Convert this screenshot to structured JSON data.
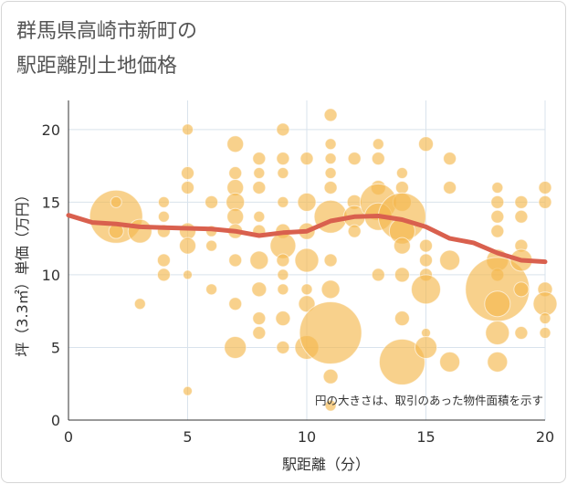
{
  "title_line1": "群馬県高崎市新町の",
  "title_line2": "駅距離別土地価格",
  "chart_data": {
    "type": "scatter",
    "xlabel": "駅距離（分）",
    "ylabel": "坪（3.3㎡）単価（万円）",
    "xlim": [
      0,
      20
    ],
    "ylim": [
      0,
      22
    ],
    "xticks": [
      0,
      5,
      10,
      15,
      20
    ],
    "yticks": [
      0,
      5,
      10,
      15,
      20
    ],
    "grid": true,
    "note": "円の大きさは、取引のあった物件面積を示す",
    "colors": {
      "bubble": "#f4b84f",
      "trend": "#d9604e"
    },
    "trend_line": {
      "x": [
        0,
        1,
        2,
        3,
        4,
        5,
        6,
        7,
        8,
        9,
        10,
        11,
        12,
        13,
        14,
        15,
        16,
        17,
        18,
        19,
        20
      ],
      "y": [
        14.1,
        13.6,
        13.5,
        13.3,
        13.25,
        13.2,
        13.15,
        13.0,
        12.7,
        12.9,
        13.0,
        13.7,
        14.0,
        14.05,
        13.8,
        13.3,
        12.5,
        12.2,
        11.5,
        11.0,
        10.9
      ]
    },
    "points": [
      {
        "x": 2,
        "y": 14,
        "s": 29
      },
      {
        "x": 2,
        "y": 15,
        "s": 6
      },
      {
        "x": 2,
        "y": 13,
        "s": 8
      },
      {
        "x": 3,
        "y": 13,
        "s": 13
      },
      {
        "x": 3,
        "y": 8,
        "s": 6
      },
      {
        "x": 4,
        "y": 15,
        "s": 6
      },
      {
        "x": 4,
        "y": 14,
        "s": 6
      },
      {
        "x": 4,
        "y": 13,
        "s": 7
      },
      {
        "x": 4,
        "y": 11,
        "s": 7
      },
      {
        "x": 4,
        "y": 10,
        "s": 7
      },
      {
        "x": 5,
        "y": 20,
        "s": 6
      },
      {
        "x": 5,
        "y": 17,
        "s": 7
      },
      {
        "x": 5,
        "y": 16,
        "s": 7
      },
      {
        "x": 5,
        "y": 13,
        "s": 9
      },
      {
        "x": 5,
        "y": 12,
        "s": 9
      },
      {
        "x": 5,
        "y": 10,
        "s": 5
      },
      {
        "x": 5,
        "y": 2,
        "s": 5
      },
      {
        "x": 6,
        "y": 15,
        "s": 7
      },
      {
        "x": 6,
        "y": 13,
        "s": 6
      },
      {
        "x": 6,
        "y": 12,
        "s": 6
      },
      {
        "x": 6,
        "y": 9,
        "s": 6
      },
      {
        "x": 7,
        "y": 19,
        "s": 9
      },
      {
        "x": 7,
        "y": 17,
        "s": 7
      },
      {
        "x": 7,
        "y": 16,
        "s": 9
      },
      {
        "x": 7,
        "y": 15,
        "s": 10
      },
      {
        "x": 7,
        "y": 14,
        "s": 9
      },
      {
        "x": 7,
        "y": 13,
        "s": 8
      },
      {
        "x": 7,
        "y": 11,
        "s": 7
      },
      {
        "x": 7,
        "y": 8,
        "s": 7
      },
      {
        "x": 7,
        "y": 5,
        "s": 12
      },
      {
        "x": 8,
        "y": 18,
        "s": 7
      },
      {
        "x": 8,
        "y": 17,
        "s": 6
      },
      {
        "x": 8,
        "y": 16,
        "s": 7
      },
      {
        "x": 8,
        "y": 14,
        "s": 6
      },
      {
        "x": 8,
        "y": 13,
        "s": 7
      },
      {
        "x": 8,
        "y": 11,
        "s": 10
      },
      {
        "x": 8,
        "y": 9,
        "s": 8
      },
      {
        "x": 8,
        "y": 7,
        "s": 7
      },
      {
        "x": 8,
        "y": 6,
        "s": 7
      },
      {
        "x": 9,
        "y": 20,
        "s": 7
      },
      {
        "x": 9,
        "y": 18,
        "s": 7
      },
      {
        "x": 9,
        "y": 17,
        "s": 6
      },
      {
        "x": 9,
        "y": 15,
        "s": 6
      },
      {
        "x": 9,
        "y": 13,
        "s": 8
      },
      {
        "x": 9,
        "y": 12,
        "s": 14
      },
      {
        "x": 9,
        "y": 11,
        "s": 7
      },
      {
        "x": 9,
        "y": 10,
        "s": 6
      },
      {
        "x": 9,
        "y": 9,
        "s": 6
      },
      {
        "x": 9,
        "y": 7,
        "s": 8
      },
      {
        "x": 9,
        "y": 5,
        "s": 7
      },
      {
        "x": 10,
        "y": 18,
        "s": 7
      },
      {
        "x": 10,
        "y": 15,
        "s": 10
      },
      {
        "x": 10,
        "y": 13,
        "s": 9
      },
      {
        "x": 10,
        "y": 11,
        "s": 13
      },
      {
        "x": 10,
        "y": 9,
        "s": 6
      },
      {
        "x": 10,
        "y": 8,
        "s": 9
      },
      {
        "x": 10,
        "y": 5,
        "s": 13
      },
      {
        "x": 11,
        "y": 21,
        "s": 7
      },
      {
        "x": 11,
        "y": 19,
        "s": 6
      },
      {
        "x": 11,
        "y": 18,
        "s": 6
      },
      {
        "x": 11,
        "y": 17,
        "s": 6
      },
      {
        "x": 11,
        "y": 16,
        "s": 7
      },
      {
        "x": 11,
        "y": 14,
        "s": 18
      },
      {
        "x": 11,
        "y": 11,
        "s": 7
      },
      {
        "x": 11,
        "y": 9,
        "s": 10
      },
      {
        "x": 11,
        "y": 6,
        "s": 34
      },
      {
        "x": 11,
        "y": 3,
        "s": 8
      },
      {
        "x": 11,
        "y": 1,
        "s": 6
      },
      {
        "x": 12,
        "y": 18,
        "s": 7
      },
      {
        "x": 12,
        "y": 15,
        "s": 8
      },
      {
        "x": 12,
        "y": 14,
        "s": 12
      },
      {
        "x": 12,
        "y": 13,
        "s": 7
      },
      {
        "x": 13,
        "y": 19,
        "s": 6
      },
      {
        "x": 13,
        "y": 18,
        "s": 7
      },
      {
        "x": 13,
        "y": 16,
        "s": 8
      },
      {
        "x": 13,
        "y": 15,
        "s": 20
      },
      {
        "x": 13,
        "y": 14,
        "s": 15
      },
      {
        "x": 13,
        "y": 10,
        "s": 7
      },
      {
        "x": 14,
        "y": 17,
        "s": 6
      },
      {
        "x": 14,
        "y": 16,
        "s": 7
      },
      {
        "x": 14,
        "y": 15,
        "s": 10
      },
      {
        "x": 14,
        "y": 14,
        "s": 26
      },
      {
        "x": 14,
        "y": 13,
        "s": 14
      },
      {
        "x": 14,
        "y": 12,
        "s": 9
      },
      {
        "x": 14,
        "y": 10,
        "s": 8
      },
      {
        "x": 14,
        "y": 7,
        "s": 8
      },
      {
        "x": 14,
        "y": 4,
        "s": 25
      },
      {
        "x": 15,
        "y": 19,
        "s": 8
      },
      {
        "x": 15,
        "y": 12,
        "s": 7
      },
      {
        "x": 15,
        "y": 11,
        "s": 7
      },
      {
        "x": 15,
        "y": 10,
        "s": 7
      },
      {
        "x": 15,
        "y": 9,
        "s": 16
      },
      {
        "x": 15,
        "y": 6,
        "s": 5
      },
      {
        "x": 15,
        "y": 5,
        "s": 12
      },
      {
        "x": 16,
        "y": 18,
        "s": 7
      },
      {
        "x": 16,
        "y": 16,
        "s": 7
      },
      {
        "x": 16,
        "y": 11,
        "s": 11
      },
      {
        "x": 16,
        "y": 4,
        "s": 11
      },
      {
        "x": 18,
        "y": 16,
        "s": 6
      },
      {
        "x": 18,
        "y": 15,
        "s": 7
      },
      {
        "x": 18,
        "y": 14,
        "s": 7
      },
      {
        "x": 18,
        "y": 13,
        "s": 7
      },
      {
        "x": 18,
        "y": 11,
        "s": 12
      },
      {
        "x": 18,
        "y": 10,
        "s": 7
      },
      {
        "x": 18,
        "y": 9,
        "s": 35
      },
      {
        "x": 18,
        "y": 8,
        "s": 14
      },
      {
        "x": 18,
        "y": 6,
        "s": 13
      },
      {
        "x": 18,
        "y": 4,
        "s": 11
      },
      {
        "x": 19,
        "y": 15,
        "s": 7
      },
      {
        "x": 19,
        "y": 14,
        "s": 7
      },
      {
        "x": 19,
        "y": 12,
        "s": 7
      },
      {
        "x": 19,
        "y": 11,
        "s": 12
      },
      {
        "x": 19,
        "y": 9,
        "s": 8
      },
      {
        "x": 19,
        "y": 6,
        "s": 7
      },
      {
        "x": 20,
        "y": 16,
        "s": 7
      },
      {
        "x": 20,
        "y": 15,
        "s": 7
      },
      {
        "x": 20,
        "y": 9,
        "s": 8
      },
      {
        "x": 20,
        "y": 8,
        "s": 13
      },
      {
        "x": 20,
        "y": 7,
        "s": 6
      },
      {
        "x": 20,
        "y": 6,
        "s": 6
      }
    ]
  }
}
